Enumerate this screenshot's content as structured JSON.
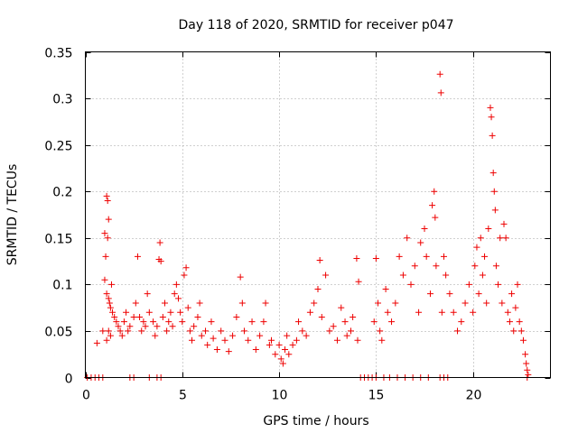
{
  "chart_data": {
    "type": "scatter",
    "title": "Day 118 of 2020, SRMTID for receiver p047",
    "xlabel": "GPS time / hours",
    "ylabel": "SRMTID / TECUs",
    "xlim": [
      0,
      24
    ],
    "ylim": [
      0,
      0.35
    ],
    "xticks": [
      0,
      5,
      10,
      15,
      20
    ],
    "xtick_labels": [
      "0",
      "5",
      "10",
      "15",
      "20"
    ],
    "yticks": [
      0,
      0.05,
      0.1,
      0.15,
      0.2,
      0.25,
      0.3,
      0.35
    ],
    "ytick_labels": [
      "0",
      "0.05",
      "0.1",
      "0.15",
      "0.2",
      "0.25",
      "0.3",
      "0.35"
    ],
    "grid": true,
    "marker": "plus",
    "color": "#ee0000",
    "series": [
      {
        "name": "SRMTID",
        "points": [
          [
            0.6,
            0.037
          ],
          [
            0.9,
            0.05
          ],
          [
            1.0,
            0.155
          ],
          [
            1.05,
            0.13
          ],
          [
            1.1,
            0.195
          ],
          [
            1.15,
            0.19
          ],
          [
            1.2,
            0.17
          ],
          [
            1.15,
            0.15
          ],
          [
            1.0,
            0.105
          ],
          [
            1.1,
            0.09
          ],
          [
            1.2,
            0.085
          ],
          [
            1.25,
            0.08
          ],
          [
            1.3,
            0.075
          ],
          [
            1.35,
            0.1
          ],
          [
            1.4,
            0.07
          ],
          [
            1.5,
            0.065
          ],
          [
            1.6,
            0.06
          ],
          [
            1.2,
            0.05
          ],
          [
            1.3,
            0.045
          ],
          [
            1.1,
            0.04
          ],
          [
            1.7,
            0.055
          ],
          [
            1.8,
            0.05
          ],
          [
            1.9,
            0.045
          ],
          [
            2.0,
            0.06
          ],
          [
            2.1,
            0.07
          ],
          [
            2.2,
            0.05
          ],
          [
            2.3,
            0.055
          ],
          [
            2.5,
            0.065
          ],
          [
            2.6,
            0.08
          ],
          [
            2.7,
            0.13
          ],
          [
            2.8,
            0.065
          ],
          [
            2.9,
            0.05
          ],
          [
            3.0,
            0.06
          ],
          [
            3.1,
            0.055
          ],
          [
            3.2,
            0.09
          ],
          [
            3.3,
            0.07
          ],
          [
            3.5,
            0.06
          ],
          [
            3.6,
            0.045
          ],
          [
            3.7,
            0.055
          ],
          [
            3.8,
            0.127
          ],
          [
            3.85,
            0.145
          ],
          [
            3.9,
            0.125
          ],
          [
            4.0,
            0.065
          ],
          [
            4.1,
            0.08
          ],
          [
            4.2,
            0.05
          ],
          [
            4.3,
            0.06
          ],
          [
            4.4,
            0.07
          ],
          [
            4.5,
            0.055
          ],
          [
            4.6,
            0.09
          ],
          [
            4.7,
            0.1
          ],
          [
            4.8,
            0.085
          ],
          [
            4.9,
            0.07
          ],
          [
            5.0,
            0.06
          ],
          [
            5.1,
            0.11
          ],
          [
            5.2,
            0.118
          ],
          [
            5.3,
            0.075
          ],
          [
            5.4,
            0.05
          ],
          [
            5.5,
            0.04
          ],
          [
            5.6,
            0.055
          ],
          [
            5.8,
            0.065
          ],
          [
            5.9,
            0.08
          ],
          [
            6.0,
            0.045
          ],
          [
            6.2,
            0.05
          ],
          [
            6.3,
            0.035
          ],
          [
            6.5,
            0.06
          ],
          [
            6.6,
            0.042
          ],
          [
            6.8,
            0.03
          ],
          [
            7.0,
            0.05
          ],
          [
            7.2,
            0.04
          ],
          [
            7.4,
            0.028
          ],
          [
            7.6,
            0.045
          ],
          [
            7.8,
            0.065
          ],
          [
            8.0,
            0.108
          ],
          [
            8.1,
            0.08
          ],
          [
            8.2,
            0.05
          ],
          [
            8.4,
            0.04
          ],
          [
            8.6,
            0.06
          ],
          [
            8.8,
            0.03
          ],
          [
            9.0,
            0.045
          ],
          [
            9.2,
            0.06
          ],
          [
            9.3,
            0.08
          ],
          [
            9.5,
            0.035
          ],
          [
            9.6,
            0.04
          ],
          [
            9.8,
            0.025
          ],
          [
            10.0,
            0.035
          ],
          [
            10.1,
            0.02
          ],
          [
            10.2,
            0.015
          ],
          [
            10.3,
            0.03
          ],
          [
            10.4,
            0.045
          ],
          [
            10.5,
            0.025
          ],
          [
            10.7,
            0.035
          ],
          [
            10.9,
            0.04
          ],
          [
            11.0,
            0.06
          ],
          [
            11.2,
            0.05
          ],
          [
            11.4,
            0.045
          ],
          [
            11.6,
            0.07
          ],
          [
            11.8,
            0.08
          ],
          [
            12.0,
            0.095
          ],
          [
            12.1,
            0.126
          ],
          [
            12.2,
            0.065
          ],
          [
            12.4,
            0.11
          ],
          [
            12.6,
            0.05
          ],
          [
            12.8,
            0.055
          ],
          [
            13.0,
            0.04
          ],
          [
            13.2,
            0.075
          ],
          [
            13.4,
            0.06
          ],
          [
            13.5,
            0.045
          ],
          [
            13.7,
            0.05
          ],
          [
            13.8,
            0.065
          ],
          [
            14.0,
            0.128
          ],
          [
            14.05,
            0.04
          ],
          [
            14.1,
            0.103
          ],
          [
            14.9,
            0.06
          ],
          [
            15.0,
            0.128
          ],
          [
            15.1,
            0.08
          ],
          [
            15.2,
            0.05
          ],
          [
            15.3,
            0.04
          ],
          [
            15.5,
            0.095
          ],
          [
            15.6,
            0.07
          ],
          [
            15.8,
            0.06
          ],
          [
            16.0,
            0.08
          ],
          [
            16.2,
            0.13
          ],
          [
            16.4,
            0.11
          ],
          [
            16.6,
            0.15
          ],
          [
            16.8,
            0.1
          ],
          [
            17.0,
            0.12
          ],
          [
            17.2,
            0.07
          ],
          [
            17.3,
            0.145
          ],
          [
            17.5,
            0.16
          ],
          [
            17.6,
            0.13
          ],
          [
            17.8,
            0.09
          ],
          [
            17.9,
            0.185
          ],
          [
            18.0,
            0.2
          ],
          [
            18.05,
            0.172
          ],
          [
            18.1,
            0.12
          ],
          [
            18.3,
            0.326
          ],
          [
            18.35,
            0.306
          ],
          [
            18.4,
            0.07
          ],
          [
            18.5,
            0.13
          ],
          [
            18.6,
            0.11
          ],
          [
            18.8,
            0.09
          ],
          [
            19.0,
            0.07
          ],
          [
            19.2,
            0.05
          ],
          [
            19.4,
            0.06
          ],
          [
            19.6,
            0.08
          ],
          [
            19.8,
            0.1
          ],
          [
            20.0,
            0.07
          ],
          [
            20.1,
            0.12
          ],
          [
            20.2,
            0.14
          ],
          [
            20.3,
            0.09
          ],
          [
            20.4,
            0.15
          ],
          [
            20.5,
            0.11
          ],
          [
            20.6,
            0.13
          ],
          [
            20.7,
            0.08
          ],
          [
            20.8,
            0.16
          ],
          [
            20.9,
            0.29
          ],
          [
            20.95,
            0.28
          ],
          [
            21.0,
            0.26
          ],
          [
            21.05,
            0.22
          ],
          [
            21.1,
            0.2
          ],
          [
            21.15,
            0.18
          ],
          [
            21.2,
            0.12
          ],
          [
            21.3,
            0.1
          ],
          [
            21.4,
            0.15
          ],
          [
            21.5,
            0.08
          ],
          [
            21.6,
            0.165
          ],
          [
            21.7,
            0.15
          ],
          [
            21.8,
            0.07
          ],
          [
            21.9,
            0.06
          ],
          [
            22.0,
            0.09
          ],
          [
            22.1,
            0.05
          ],
          [
            22.2,
            0.075
          ],
          [
            22.3,
            0.1
          ],
          [
            22.4,
            0.06
          ],
          [
            22.5,
            0.05
          ],
          [
            22.6,
            0.04
          ],
          [
            22.7,
            0.025
          ],
          [
            22.75,
            0.015
          ],
          [
            22.8,
            0.008
          ],
          [
            22.85,
            0.003
          ]
        ]
      }
    ],
    "zero_points_x": [
      0.1,
      0.3,
      0.5,
      0.7,
      0.9,
      2.3,
      2.5,
      3.3,
      3.7,
      3.9,
      14.2,
      14.4,
      14.6,
      14.8,
      15.0,
      15.4,
      15.7,
      16.1,
      16.5,
      16.9,
      17.3,
      17.7,
      18.3,
      18.5,
      18.7,
      22.8
    ]
  }
}
